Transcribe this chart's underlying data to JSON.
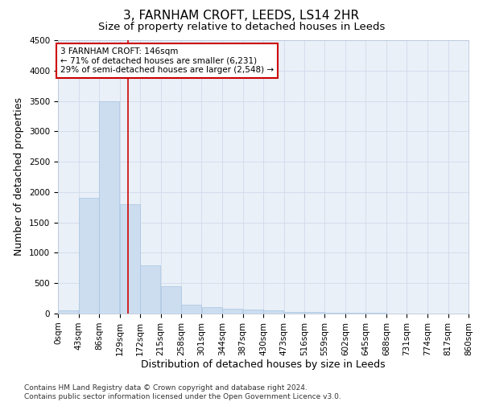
{
  "title": "3, FARNHAM CROFT, LEEDS, LS14 2HR",
  "subtitle": "Size of property relative to detached houses in Leeds",
  "xlabel": "Distribution of detached houses by size in Leeds",
  "ylabel": "Number of detached properties",
  "bar_values": [
    50,
    1900,
    3500,
    1800,
    800,
    450,
    150,
    100,
    75,
    60,
    50,
    30,
    20,
    15,
    10,
    8,
    6,
    5,
    4,
    3
  ],
  "bin_edges": [
    0,
    43,
    86,
    129,
    172,
    215,
    258,
    301,
    344,
    387,
    430,
    473,
    516,
    559,
    602,
    645,
    688,
    731,
    774,
    817,
    860
  ],
  "bar_color": "#ccddf0",
  "bar_edge_color": "#a8c4e0",
  "vline_x": 146,
  "vline_color": "#cc0000",
  "annotation_text": "3 FARNHAM CROFT: 146sqm\n← 71% of detached houses are smaller (6,231)\n29% of semi-detached houses are larger (2,548) →",
  "annotation_box_color": "#cc0000",
  "ylim": [
    0,
    4500
  ],
  "yticks": [
    0,
    500,
    1000,
    1500,
    2000,
    2500,
    3000,
    3500,
    4000,
    4500
  ],
  "footnote": "Contains HM Land Registry data © Crown copyright and database right 2024.\nContains public sector information licensed under the Open Government Licence v3.0.",
  "title_fontsize": 11,
  "subtitle_fontsize": 9.5,
  "axis_label_fontsize": 9,
  "tick_fontsize": 7.5,
  "annotation_fontsize": 7.5,
  "footnote_fontsize": 6.5,
  "bg_color": "#ffffff",
  "plot_bg_color": "#eaf0f8",
  "grid_color": "#d0daea"
}
